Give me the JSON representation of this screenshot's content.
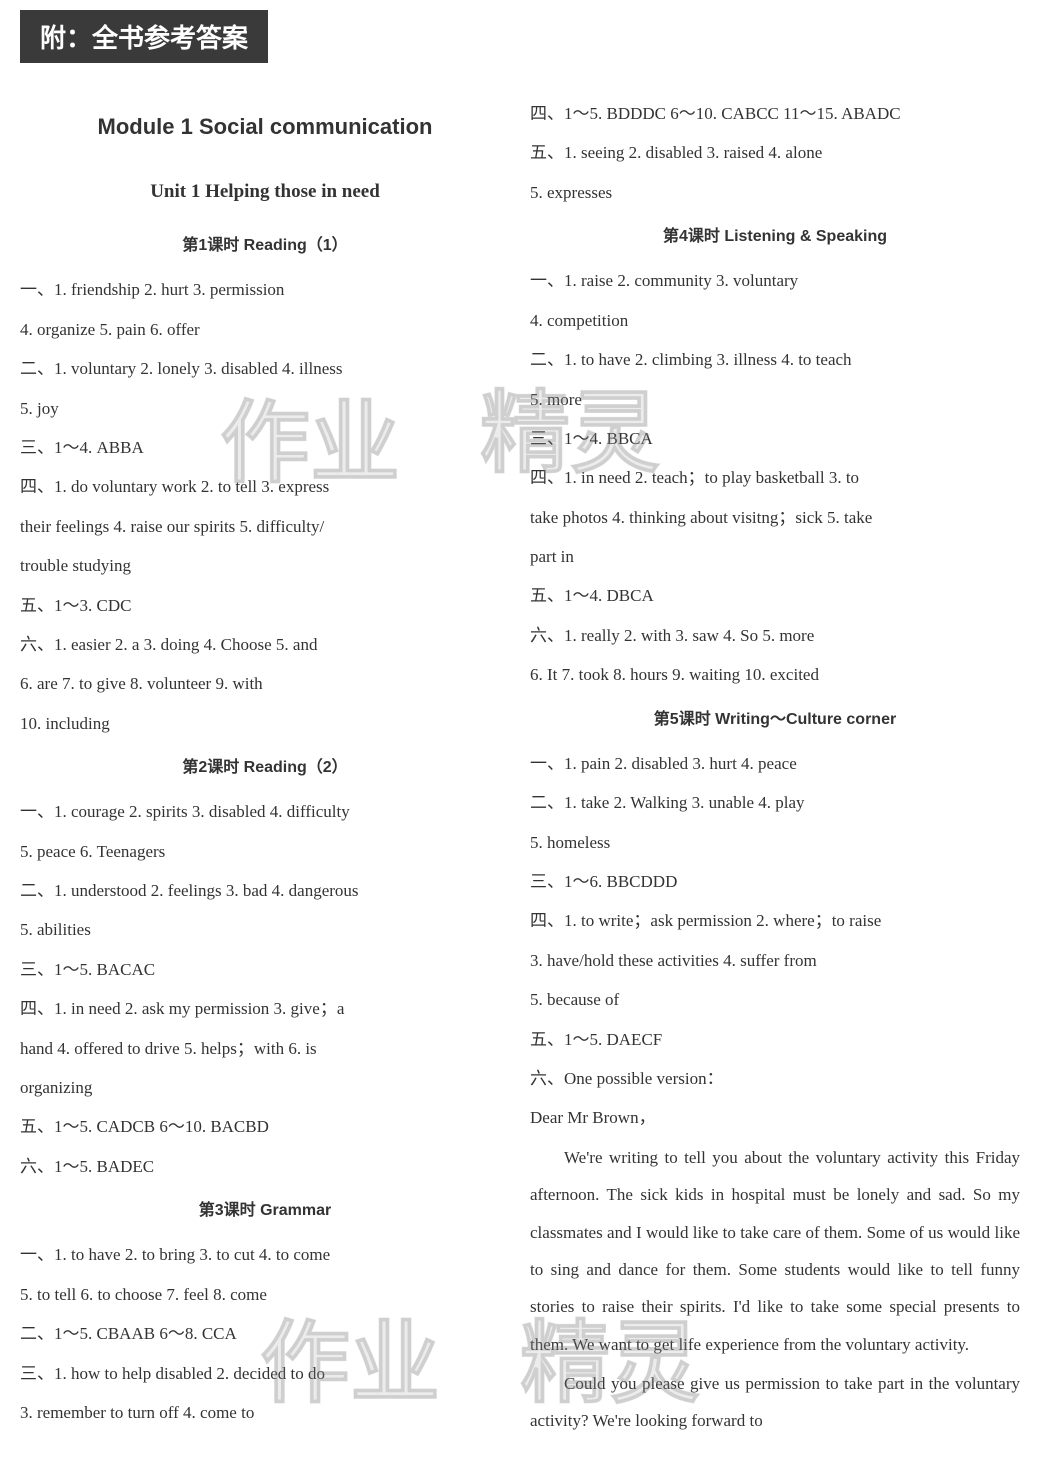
{
  "banner": "附：全书参考答案",
  "module": "Module 1  Social communication",
  "unit": "Unit 1   Helping those in need",
  "watermark_a": "作业",
  "watermark_b": "精灵",
  "lessons": {
    "l1": {
      "title": "第1课时   Reading（1）",
      "lines": [
        "一、1. friendship   2. hurt   3. permission",
        "4. organize  5. pain  6. offer",
        "二、1. voluntary  2. lonely  3. disabled  4. illness",
        "5. joy",
        "三、1～4. ABBA",
        "四、1. do voluntary work  2. to tell  3. express",
        "their feelings   4. raise our spirits   5. difficulty/",
        "trouble studying",
        "五、1～3. CDC",
        "六、1. easier  2. a  3. doing  4. Choose  5. and",
        "6. are   7. to give   8. volunteer   9. with",
        "10. including"
      ]
    },
    "l2": {
      "title": "第2课时   Reading（2）",
      "lines": [
        "一、1. courage  2. spirits  3. disabled  4. difficulty",
        "5. peace  6. Teenagers",
        "二、1. understood  2. feelings  3. bad  4. dangerous",
        "5. abilities",
        "三、1～5. BACAC",
        "四、1. in need   2. ask my permission   3. give；a",
        "hand   4. offered to drive   5. helps；with   6. is",
        "organizing",
        "五、1～5. CADCB  6～10. BACBD",
        "六、1～5. BADEC"
      ]
    },
    "l3": {
      "title": "第3课时   Grammar",
      "lines": [
        "一、1. to have  2. to bring  3. to cut  4. to come",
        "5. to tell  6. to choose  7. feel  8. come",
        "二、1～5. CBAAB  6～8. CCA",
        "三、1. how to help disabled   2. decided to do",
        "3. remember to turn off  4. come to"
      ]
    },
    "l3b": {
      "lines": [
        "四、1～5. BDDDC  6～10. CABCC  11～15. ABADC",
        "五、1. seeing   2. disabled   3. raised   4. alone",
        "5. expresses"
      ]
    },
    "l4": {
      "title": "第4课时   Listening & Speaking",
      "lines": [
        "一、1. raise    2. community    3. voluntary",
        "4. competition",
        "二、1. to have  2. climbing  3. illness  4. to teach",
        "5. more",
        "三、1～4. BBCA",
        "四、1. in need   2. teach；to play basketball   3. to",
        "take photos   4. thinking about visitng；sick   5. take",
        "part in",
        "五、1～4. DBCA",
        "六、1. really   2. with   3. saw   4. So   5. more",
        "6. It  7. took  8. hours  9. waiting  10. excited"
      ]
    },
    "l5": {
      "title": "第5课时   Writing～Culture corner",
      "lines": [
        "一、1. pain  2. disabled  3. hurt  4. peace",
        "二、1. take   2. Walking   3. unable   4. play",
        "5. homeless",
        "三、1～6. BBCDDD",
        "四、1. to write；ask permission   2. where；to raise",
        "3.  have/hold  these  activities    4.  suffer  from",
        "5. because of",
        "五、1～5. DAECF",
        "六、One possible version："
      ],
      "essay": [
        "Dear Mr Brown，",
        "We're writing to tell you about the voluntary activity this Friday afternoon. The sick kids in hospital must be lonely and sad. So my classmates and I would like to take care of them. Some of us would like to sing and dance for them. Some students would like to tell funny stories to raise their spirits. I'd like to take some special presents to them. We want to get life experience from the voluntary activity.",
        "Could you please give us permission to take part in the voluntary activity? We're looking forward to"
      ]
    }
  },
  "colors": {
    "banner_bg": "#3a3a3a",
    "banner_text": "#ffffff",
    "page_bg": "#ffffff",
    "text": "#333333",
    "watermark": "rgba(150,150,150,0.18)"
  }
}
